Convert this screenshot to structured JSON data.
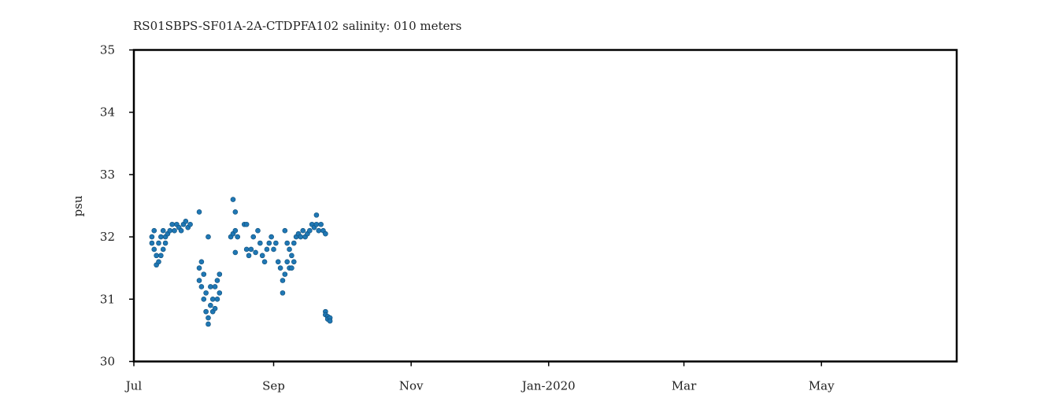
{
  "chart_data": {
    "type": "scatter",
    "title": "RS01SBPS-SF01A-2A-CTDPFA102 salinity: 010 meters",
    "xlabel": "",
    "ylabel": "psu",
    "xlim": [
      "2019-07-01",
      "2020-06-30"
    ],
    "ylim": [
      30,
      35
    ],
    "grid": false,
    "x_ticks": [
      {
        "date": "2019-07-01",
        "label": "Jul"
      },
      {
        "date": "2019-09-01",
        "label": "Sep"
      },
      {
        "date": "2019-11-01",
        "label": "Nov"
      },
      {
        "date": "2020-01-01",
        "label": "Jan-2020"
      },
      {
        "date": "2020-03-01",
        "label": "Mar"
      },
      {
        "date": "2020-05-01",
        "label": "May"
      }
    ],
    "y_ticks": [
      30,
      31,
      32,
      33,
      34,
      35
    ],
    "series": [
      {
        "color": "#1f77b4",
        "points": [
          {
            "x": "2019-07-09",
            "y": 32.0
          },
          {
            "x": "2019-07-09",
            "y": 31.9
          },
          {
            "x": "2019-07-10",
            "y": 31.8
          },
          {
            "x": "2019-07-10",
            "y": 32.1
          },
          {
            "x": "2019-07-11",
            "y": 31.7
          },
          {
            "x": "2019-07-11",
            "y": 31.55
          },
          {
            "x": "2019-07-12",
            "y": 31.6
          },
          {
            "x": "2019-07-12",
            "y": 31.9
          },
          {
            "x": "2019-07-13",
            "y": 32.0
          },
          {
            "x": "2019-07-13",
            "y": 31.7
          },
          {
            "x": "2019-07-14",
            "y": 31.8
          },
          {
            "x": "2019-07-14",
            "y": 32.1
          },
          {
            "x": "2019-07-15",
            "y": 32.0
          },
          {
            "x": "2019-07-15",
            "y": 31.9
          },
          {
            "x": "2019-07-16",
            "y": 32.05
          },
          {
            "x": "2019-07-17",
            "y": 32.1
          },
          {
            "x": "2019-07-18",
            "y": 32.2
          },
          {
            "x": "2019-07-19",
            "y": 32.1
          },
          {
            "x": "2019-07-20",
            "y": 32.2
          },
          {
            "x": "2019-07-21",
            "y": 32.15
          },
          {
            "x": "2019-07-22",
            "y": 32.1
          },
          {
            "x": "2019-07-23",
            "y": 32.2
          },
          {
            "x": "2019-07-24",
            "y": 32.25
          },
          {
            "x": "2019-07-25",
            "y": 32.15
          },
          {
            "x": "2019-07-26",
            "y": 32.2
          },
          {
            "x": "2019-07-30",
            "y": 32.4
          },
          {
            "x": "2019-07-30",
            "y": 31.5
          },
          {
            "x": "2019-07-30",
            "y": 31.3
          },
          {
            "x": "2019-07-31",
            "y": 31.2
          },
          {
            "x": "2019-07-31",
            "y": 31.6
          },
          {
            "x": "2019-08-01",
            "y": 31.0
          },
          {
            "x": "2019-08-01",
            "y": 31.4
          },
          {
            "x": "2019-08-02",
            "y": 30.8
          },
          {
            "x": "2019-08-02",
            "y": 31.1
          },
          {
            "x": "2019-08-03",
            "y": 30.6
          },
          {
            "x": "2019-08-03",
            "y": 32.0
          },
          {
            "x": "2019-08-03",
            "y": 30.7
          },
          {
            "x": "2019-08-04",
            "y": 30.9
          },
          {
            "x": "2019-08-04",
            "y": 31.2
          },
          {
            "x": "2019-08-05",
            "y": 30.8
          },
          {
            "x": "2019-08-05",
            "y": 31.0
          },
          {
            "x": "2019-08-06",
            "y": 30.85
          },
          {
            "x": "2019-08-06",
            "y": 31.2
          },
          {
            "x": "2019-08-07",
            "y": 31.3
          },
          {
            "x": "2019-08-07",
            "y": 31.0
          },
          {
            "x": "2019-08-08",
            "y": 31.4
          },
          {
            "x": "2019-08-08",
            "y": 31.1
          },
          {
            "x": "2019-08-13",
            "y": 32.0
          },
          {
            "x": "2019-08-14",
            "y": 32.05
          },
          {
            "x": "2019-08-14",
            "y": 32.6
          },
          {
            "x": "2019-08-15",
            "y": 32.4
          },
          {
            "x": "2019-08-15",
            "y": 32.1
          },
          {
            "x": "2019-08-15",
            "y": 31.75
          },
          {
            "x": "2019-08-16",
            "y": 32.0
          },
          {
            "x": "2019-08-19",
            "y": 32.2
          },
          {
            "x": "2019-08-20",
            "y": 31.8
          },
          {
            "x": "2019-08-20",
            "y": 32.2
          },
          {
            "x": "2019-08-21",
            "y": 31.7
          },
          {
            "x": "2019-08-22",
            "y": 31.8
          },
          {
            "x": "2019-08-23",
            "y": 32.0
          },
          {
            "x": "2019-08-24",
            "y": 31.75
          },
          {
            "x": "2019-08-25",
            "y": 32.1
          },
          {
            "x": "2019-08-26",
            "y": 31.9
          },
          {
            "x": "2019-08-27",
            "y": 31.7
          },
          {
            "x": "2019-08-28",
            "y": 31.6
          },
          {
            "x": "2019-08-29",
            "y": 31.8
          },
          {
            "x": "2019-08-30",
            "y": 31.9
          },
          {
            "x": "2019-08-31",
            "y": 32.0
          },
          {
            "x": "2019-09-01",
            "y": 31.8
          },
          {
            "x": "2019-09-02",
            "y": 31.9
          },
          {
            "x": "2019-09-03",
            "y": 31.6
          },
          {
            "x": "2019-09-04",
            "y": 31.5
          },
          {
            "x": "2019-09-05",
            "y": 31.3
          },
          {
            "x": "2019-09-05",
            "y": 31.1
          },
          {
            "x": "2019-09-06",
            "y": 31.4
          },
          {
            "x": "2019-09-06",
            "y": 32.1
          },
          {
            "x": "2019-09-07",
            "y": 31.6
          },
          {
            "x": "2019-09-07",
            "y": 31.9
          },
          {
            "x": "2019-09-08",
            "y": 31.5
          },
          {
            "x": "2019-09-08",
            "y": 31.8
          },
          {
            "x": "2019-09-09",
            "y": 31.7
          },
          {
            "x": "2019-09-09",
            "y": 31.5
          },
          {
            "x": "2019-09-10",
            "y": 31.9
          },
          {
            "x": "2019-09-10",
            "y": 31.6
          },
          {
            "x": "2019-09-11",
            "y": 32.0
          },
          {
            "x": "2019-09-12",
            "y": 32.05
          },
          {
            "x": "2019-09-13",
            "y": 32.0
          },
          {
            "x": "2019-09-14",
            "y": 32.1
          },
          {
            "x": "2019-09-15",
            "y": 32.0
          },
          {
            "x": "2019-09-16",
            "y": 32.05
          },
          {
            "x": "2019-09-17",
            "y": 32.1
          },
          {
            "x": "2019-09-18",
            "y": 32.2
          },
          {
            "x": "2019-09-19",
            "y": 32.15
          },
          {
            "x": "2019-09-20",
            "y": 32.2
          },
          {
            "x": "2019-09-20",
            "y": 32.35
          },
          {
            "x": "2019-09-21",
            "y": 32.1
          },
          {
            "x": "2019-09-22",
            "y": 32.2
          },
          {
            "x": "2019-09-23",
            "y": 32.1
          },
          {
            "x": "2019-09-24",
            "y": 32.05
          },
          {
            "x": "2019-09-24",
            "y": 30.8
          },
          {
            "x": "2019-09-24",
            "y": 30.75
          },
          {
            "x": "2019-09-25",
            "y": 30.72
          },
          {
            "x": "2019-09-25",
            "y": 30.68
          },
          {
            "x": "2019-09-26",
            "y": 30.7
          },
          {
            "x": "2019-09-26",
            "y": 30.65
          }
        ]
      }
    ]
  }
}
